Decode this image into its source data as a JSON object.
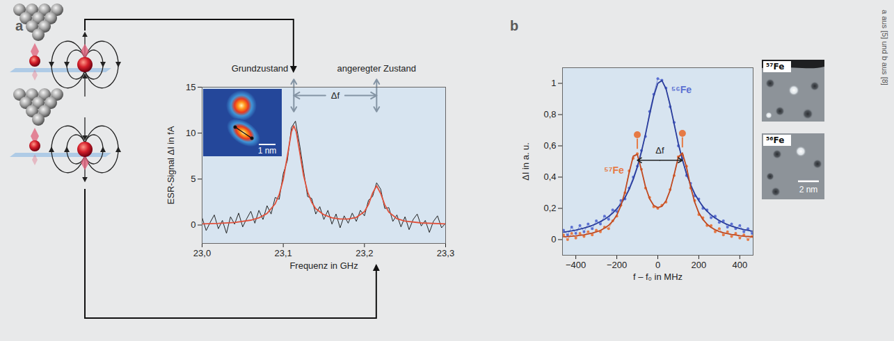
{
  "credit": "a aus [5] und b aus [8]",
  "chart_data": [
    {
      "panel": "a",
      "type": "line",
      "xlabel": "Frequenz in GHz",
      "ylabel": "ESR-Signal ΔI in fA",
      "xlim": [
        23.0,
        23.3
      ],
      "xticks": [
        {
          "value": 23.0,
          "label": "23,0"
        },
        {
          "value": 23.1,
          "label": "23,1"
        },
        {
          "value": 23.2,
          "label": "23,2"
        },
        {
          "value": 23.3,
          "label": "23,3"
        }
      ],
      "ylim": [
        -2,
        15
      ],
      "yticks": [
        0,
        5,
        10,
        15
      ],
      "annotations": {
        "ground": "Grundzustand",
        "excited": "angeregter Zustand",
        "splitting": "Δf"
      },
      "inset": {
        "scale_bar": "1 nm"
      },
      "series": [
        {
          "color": "#222222",
          "line_style": "solid",
          "x": [
            23.0,
            23.005,
            23.01,
            23.015,
            23.02,
            23.025,
            23.03,
            23.035,
            23.04,
            23.045,
            23.05,
            23.055,
            23.06,
            23.065,
            23.07,
            23.075,
            23.08,
            23.085,
            23.09,
            23.095,
            23.1,
            23.105,
            23.11,
            23.115,
            23.12,
            23.125,
            23.13,
            23.135,
            23.14,
            23.145,
            23.15,
            23.155,
            23.16,
            23.165,
            23.17,
            23.175,
            23.18,
            23.185,
            23.19,
            23.195,
            23.2,
            23.205,
            23.21,
            23.215,
            23.22,
            23.225,
            23.23,
            23.235,
            23.24,
            23.245,
            23.25,
            23.255,
            23.26,
            23.265,
            23.27,
            23.275,
            23.28,
            23.285,
            23.29,
            23.295,
            23.3
          ],
          "values": [
            0.8,
            -0.6,
            0.3,
            1.1,
            -0.4,
            0.5,
            -0.9,
            0.9,
            0.1,
            1.3,
            -0.2,
            0.7,
            1.5,
            0.2,
            1.6,
            0.6,
            2.1,
            1.2,
            3.0,
            2.8,
            5.6,
            7.0,
            10.6,
            11.3,
            8.8,
            5.9,
            3.1,
            2.9,
            1.2,
            2.0,
            0.6,
            1.6,
            0.1,
            1.2,
            -0.3,
            1.0,
            0.2,
            1.3,
            0.4,
            1.6,
            1.0,
            2.7,
            3.1,
            4.6,
            3.9,
            1.8,
            1.9,
            0.4,
            1.1,
            -0.2,
            0.9,
            -0.5,
            0.6,
            1.2,
            -0.1,
            0.5,
            -0.8,
            0.4,
            1.0,
            -0.3,
            0.2
          ]
        },
        {
          "color": "#e0503a",
          "line_style": "solid",
          "x": [
            23.0,
            23.02,
            23.04,
            23.06,
            23.07,
            23.08,
            23.09,
            23.095,
            23.1,
            23.105,
            23.11,
            23.113,
            23.116,
            23.12,
            23.125,
            23.13,
            23.135,
            23.14,
            23.15,
            23.16,
            23.17,
            23.18,
            23.19,
            23.2,
            23.205,
            23.21,
            23.215,
            23.22,
            23.225,
            23.23,
            23.24,
            23.25,
            23.27,
            23.3
          ],
          "values": [
            0.12,
            0.18,
            0.28,
            0.53,
            0.78,
            1.26,
            2.31,
            3.32,
            4.97,
            7.48,
            10.16,
            10.8,
            10.16,
            8.06,
            5.4,
            3.59,
            2.48,
            1.78,
            1.12,
            0.79,
            0.65,
            0.65,
            0.83,
            1.46,
            2.24,
            3.46,
            4.27,
            3.44,
            2.2,
            1.41,
            0.7,
            0.43,
            0.23,
            0.13
          ]
        }
      ]
    },
    {
      "panel": "b",
      "type": "line",
      "xlabel": "f – f₀ in MHz",
      "ylabel": "ΔI in a. u.",
      "xlim": [
        -465,
        465
      ],
      "xticks": [
        {
          "value": -400,
          "label": "−400"
        },
        {
          "value": -200,
          "label": "−200"
        },
        0,
        200,
        400
      ],
      "ylim": [
        -0.1,
        1.1
      ],
      "yticks": [
        0,
        {
          "value": 0.2,
          "label": "0,2"
        },
        {
          "value": 0.4,
          "label": "0,4"
        },
        {
          "value": 0.6,
          "label": "0,6"
        },
        {
          "value": 0.8,
          "label": "0,8"
        },
        1
      ],
      "annotations": {
        "splitting": "Δf"
      },
      "images": [
        {
          "label": "⁵⁷Fe"
        },
        {
          "label": "⁵⁶Fe",
          "scale_bar": "2 nm"
        }
      ],
      "series": [
        {
          "name": "⁵⁶Fe",
          "color": "#5b70d2",
          "marker": "dot",
          "line_style": "solid",
          "x": [
            -460,
            -440,
            -420,
            -400,
            -380,
            -360,
            -340,
            -320,
            -300,
            -280,
            -260,
            -240,
            -220,
            -200,
            -180,
            -160,
            -140,
            -120,
            -100,
            -80,
            -60,
            -40,
            -20,
            0,
            20,
            40,
            60,
            80,
            100,
            120,
            140,
            160,
            180,
            200,
            220,
            240,
            260,
            280,
            300,
            320,
            340,
            360,
            380,
            400,
            420,
            440,
            460
          ],
          "values": [
            0.06,
            0.03,
            0.08,
            0.04,
            0.09,
            0.05,
            0.1,
            0.07,
            0.12,
            0.1,
            0.15,
            0.13,
            0.19,
            0.18,
            0.25,
            0.26,
            0.33,
            0.4,
            0.47,
            0.57,
            0.66,
            0.82,
            0.93,
            1.03,
            1.02,
            0.97,
            0.85,
            0.75,
            0.6,
            0.52,
            0.41,
            0.36,
            0.28,
            0.26,
            0.2,
            0.19,
            0.14,
            0.15,
            0.11,
            0.12,
            0.08,
            0.1,
            0.07,
            0.09,
            0.05,
            0.07,
            0.04
          ]
        },
        {
          "name": "⁵⁷Fe",
          "color": "#e67a45",
          "marker": "dot",
          "line_style": "solid",
          "x": [
            -460,
            -440,
            -420,
            -400,
            -380,
            -360,
            -340,
            -320,
            -300,
            -280,
            -260,
            -240,
            -220,
            -200,
            -180,
            -160,
            -140,
            -120,
            -100,
            -80,
            -60,
            -40,
            -20,
            0,
            20,
            40,
            60,
            80,
            100,
            120,
            140,
            160,
            180,
            200,
            220,
            240,
            260,
            280,
            300,
            320,
            340,
            360,
            380,
            400,
            420,
            440,
            460
          ],
          "values": [
            0.03,
            0.0,
            0.04,
            0.01,
            0.04,
            0.02,
            0.05,
            0.03,
            0.06,
            0.05,
            0.08,
            0.07,
            0.12,
            0.15,
            0.22,
            0.3,
            0.44,
            0.52,
            0.55,
            0.45,
            0.33,
            0.27,
            0.21,
            0.2,
            0.22,
            0.24,
            0.32,
            0.41,
            0.53,
            0.54,
            0.47,
            0.33,
            0.25,
            0.16,
            0.14,
            0.09,
            0.09,
            0.05,
            0.07,
            0.03,
            0.05,
            0.02,
            0.04,
            0.01,
            0.03,
            0.0,
            0.02
          ]
        },
        {
          "color": "#2a3d9c",
          "line_style": "solid",
          "x": [
            -460,
            -440,
            -420,
            -400,
            -380,
            -360,
            -340,
            -320,
            -300,
            -280,
            -260,
            -240,
            -220,
            -200,
            -180,
            -160,
            -140,
            -120,
            -100,
            -80,
            -60,
            -40,
            -20,
            0,
            20,
            40,
            60,
            80,
            100,
            120,
            140,
            160,
            180,
            200,
            220,
            240,
            260,
            280,
            300,
            320,
            340,
            360,
            380,
            400,
            420,
            440,
            460
          ],
          "values": [
            0.047,
            0.052,
            0.056,
            0.061,
            0.067,
            0.074,
            0.082,
            0.091,
            0.102,
            0.115,
            0.13,
            0.148,
            0.17,
            0.197,
            0.229,
            0.27,
            0.321,
            0.385,
            0.464,
            0.561,
            0.675,
            0.8,
            0.918,
            1.0,
            1.018,
            0.965,
            0.862,
            0.737,
            0.616,
            0.51,
            0.422,
            0.351,
            0.294,
            0.249,
            0.212,
            0.182,
            0.158,
            0.138,
            0.122,
            0.108,
            0.096,
            0.086,
            0.078,
            0.071,
            0.064,
            0.059,
            0.054
          ]
        },
        {
          "color": "#c04a22",
          "line_style": "solid",
          "x": [
            -460,
            -440,
            -420,
            -400,
            -380,
            -360,
            -340,
            -320,
            -300,
            -280,
            -260,
            -240,
            -220,
            -200,
            -180,
            -160,
            -140,
            -120,
            -100,
            -80,
            -60,
            -40,
            -20,
            0,
            20,
            40,
            60,
            80,
            100,
            120,
            140,
            160,
            180,
            200,
            220,
            240,
            260,
            280,
            300,
            320,
            340,
            360,
            380,
            400,
            420,
            440,
            460
          ],
          "values": [
            0.018,
            0.019,
            0.022,
            0.024,
            0.027,
            0.031,
            0.036,
            0.042,
            0.049,
            0.059,
            0.073,
            0.091,
            0.118,
            0.157,
            0.217,
            0.306,
            0.427,
            0.534,
            0.546,
            0.447,
            0.338,
            0.261,
            0.219,
            0.205,
            0.213,
            0.248,
            0.315,
            0.418,
            0.527,
            0.555,
            0.463,
            0.339,
            0.239,
            0.172,
            0.128,
            0.099,
            0.078,
            0.063,
            0.052,
            0.044,
            0.038,
            0.033,
            0.029,
            0.025,
            0.022,
            0.02,
            0.018
          ]
        }
      ]
    }
  ]
}
